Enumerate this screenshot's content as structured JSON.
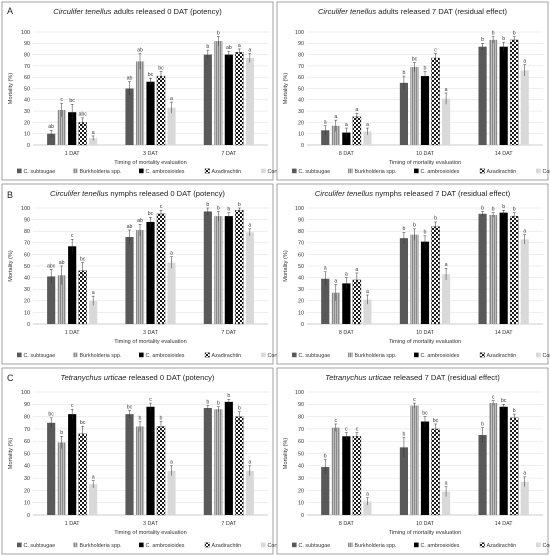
{
  "colors": {
    "C. subtsugae": "#595959",
    "Burkholderia spp.": "#a6a6a6",
    "C. ambrosioides": "#000000",
    "Azadirachtin": "#checker",
    "Control": "#d9d9d9"
  },
  "series_names": [
    "C. subtsugae",
    "Burkholderia spp.",
    "C. ambrosioides",
    "Azadirachtin",
    "Control"
  ],
  "xlabel": "Timing of mortality evaluation",
  "ylabel": "Mortality (%)",
  "panel_letters": [
    "A",
    "B",
    "C"
  ],
  "chart_data": [
    {
      "type": "bar",
      "title_italic": "Circulifer tenellus",
      "title_rest": " adults released 0 DAT (potency)",
      "categories": [
        "1 DAT",
        "3 DAT",
        "7 DAT"
      ],
      "ylim": [
        0,
        100
      ],
      "yticks": [
        0,
        10,
        20,
        30,
        40,
        50,
        60,
        70,
        80,
        90,
        100
      ],
      "series": [
        {
          "name": "C. subtsugae",
          "values": [
            10,
            50,
            80
          ],
          "errors": [
            3,
            6,
            4
          ],
          "letters": [
            "ab",
            "ab",
            "b"
          ]
        },
        {
          "name": "Burkholderia spp.",
          "values": [
            31,
            74,
            92
          ],
          "errors": [
            6,
            7,
            4
          ],
          "letters": [
            "c",
            "ab",
            "b"
          ]
        },
        {
          "name": "C. ambrosioides",
          "values": [
            29,
            56,
            80
          ],
          "errors": [
            7,
            3,
            3
          ],
          "letters": [
            "bc",
            "bc",
            "ab"
          ]
        },
        {
          "name": "Azadirachtin",
          "values": [
            20,
            61,
            82
          ],
          "errors": [
            4,
            4,
            3
          ],
          "letters": [
            "abc",
            "bc",
            "a"
          ]
        },
        {
          "name": "Control",
          "values": [
            6,
            33,
            77
          ],
          "errors": [
            2,
            5,
            4
          ],
          "letters": [
            "a",
            "a",
            "a"
          ]
        }
      ]
    },
    {
      "type": "bar",
      "title_italic": "Circulifer tenellus",
      "title_rest": " adults released 7 DAT (residual effect)",
      "categories": [
        "8 DAT",
        "10 DAT",
        "14 DAT"
      ],
      "ylim": [
        0,
        100
      ],
      "yticks": [
        0,
        10,
        20,
        30,
        40,
        50,
        60,
        70,
        80,
        90,
        100
      ],
      "series": [
        {
          "name": "C. subtsugae",
          "values": [
            13,
            55,
            87
          ],
          "errors": [
            4,
            6,
            3
          ],
          "letters": [
            "a",
            "b",
            "b"
          ]
        },
        {
          "name": "Burkholderia spp.",
          "values": [
            17,
            69,
            93
          ],
          "errors": [
            5,
            4,
            3
          ],
          "letters": [
            "a",
            "bc",
            "b"
          ]
        },
        {
          "name": "C. ambrosioides",
          "values": [
            11,
            61,
            87
          ],
          "errors": [
            4,
            4,
            4
          ],
          "letters": [
            "a",
            "b",
            "b"
          ]
        },
        {
          "name": "Azadirachtin",
          "values": [
            25,
            77,
            93
          ],
          "errors": [
            3,
            4,
            3
          ],
          "letters": [
            "a",
            "c",
            "b"
          ]
        },
        {
          "name": "Control",
          "values": [
            12,
            41,
            66
          ],
          "errors": [
            3,
            5,
            5
          ],
          "letters": [
            "a",
            "a",
            "a"
          ]
        }
      ]
    },
    {
      "type": "bar",
      "title_italic": "Circulifer tenellus",
      "title_rest": " nymphs released 0 DAT (potency)",
      "categories": [
        "1 DAT",
        "3 DAT",
        "7 DAT"
      ],
      "ylim": [
        0,
        100
      ],
      "yticks": [
        0,
        10,
        20,
        30,
        40,
        50,
        60,
        70,
        80,
        90,
        100
      ],
      "series": [
        {
          "name": "C. subtsugae",
          "values": [
            41,
            75,
            97
          ],
          "errors": [
            6,
            6,
            3
          ],
          "letters": [
            "abc",
            "ab",
            "b"
          ]
        },
        {
          "name": "Burkholderia spp.",
          "values": [
            42,
            81,
            93
          ],
          "errors": [
            8,
            5,
            4
          ],
          "letters": [
            "ab",
            "ab",
            "b"
          ]
        },
        {
          "name": "C. ambrosioides",
          "values": [
            67,
            88,
            93
          ],
          "errors": [
            6,
            4,
            3
          ],
          "letters": [
            "c",
            "bc",
            "b"
          ]
        },
        {
          "name": "Azadirachtin",
          "values": [
            46,
            95,
            98
          ],
          "errors": [
            7,
            3,
            2
          ],
          "letters": [
            "bc",
            "c",
            "b"
          ]
        },
        {
          "name": "Control",
          "values": [
            20,
            53,
            79
          ],
          "errors": [
            4,
            5,
            3
          ],
          "letters": [
            "a",
            "a",
            "a"
          ]
        }
      ]
    },
    {
      "type": "bar",
      "title_italic": "Circulifer tenellus",
      "title_rest": " nymphs released 7 DAT (residual effect)",
      "categories": [
        "8 DAT",
        "10 DAT",
        "14 DAT"
      ],
      "ylim": [
        0,
        100
      ],
      "yticks": [
        0,
        10,
        20,
        30,
        40,
        50,
        60,
        70,
        80,
        90,
        100
      ],
      "series": [
        {
          "name": "C. subtsugae",
          "values": [
            39,
            74,
            95
          ],
          "errors": [
            6,
            5,
            2
          ],
          "letters": [
            "a",
            "b",
            "b"
          ]
        },
        {
          "name": "Burkholderia spp.",
          "values": [
            27,
            77,
            94
          ],
          "errors": [
            7,
            5,
            2
          ],
          "letters": [
            "a",
            "b",
            "b"
          ]
        },
        {
          "name": "C. ambrosioides",
          "values": [
            35,
            71,
            96
          ],
          "errors": [
            5,
            5,
            2
          ],
          "letters": [
            "a",
            "b",
            "b"
          ]
        },
        {
          "name": "Azadirachtin",
          "values": [
            38,
            84,
            93
          ],
          "errors": [
            6,
            4,
            3
          ],
          "letters": [
            "a",
            "b",
            "b"
          ]
        },
        {
          "name": "Control",
          "values": [
            21,
            43,
            73
          ],
          "errors": [
            4,
            5,
            4
          ],
          "letters": [
            "a",
            "a",
            "a"
          ]
        }
      ]
    },
    {
      "type": "bar",
      "title_italic": "Tetranychus urticae",
      "title_rest": " released 0 DAT (potency)",
      "categories": [
        "1 DAT",
        "3 DAT",
        "7 DAT"
      ],
      "ylim": [
        0,
        100
      ],
      "yticks": [
        0,
        10,
        20,
        30,
        40,
        50,
        60,
        70,
        80,
        90,
        100
      ],
      "series": [
        {
          "name": "C. subtsugae",
          "values": [
            75,
            82,
            87
          ],
          "errors": [
            4,
            3,
            2
          ],
          "letters": [
            "bc",
            "bc",
            "b"
          ]
        },
        {
          "name": "Burkholderia spp.",
          "values": [
            59,
            72,
            86
          ],
          "errors": [
            5,
            4,
            2
          ],
          "letters": [
            "b",
            "b",
            "b"
          ]
        },
        {
          "name": "C. ambrosioides",
          "values": [
            82,
            88,
            92
          ],
          "errors": [
            4,
            3,
            2
          ],
          "letters": [
            "c",
            "c",
            "b"
          ]
        },
        {
          "name": "Azadirachtin",
          "values": [
            66,
            72,
            80
          ],
          "errors": [
            6,
            4,
            4
          ],
          "letters": [
            "bc",
            "b",
            "b"
          ]
        },
        {
          "name": "Control",
          "values": [
            25,
            36,
            36
          ],
          "errors": [
            3,
            4,
            4
          ],
          "letters": [
            "a",
            "a",
            "a"
          ]
        }
      ]
    },
    {
      "type": "bar",
      "title_italic": "Tetranychus urticae",
      "title_rest": " released 7 DAT (residual effect)",
      "categories": [
        "8 DAT",
        "10 DAT",
        "14 DAT"
      ],
      "ylim": [
        0,
        100
      ],
      "yticks": [
        0,
        10,
        20,
        30,
        40,
        50,
        60,
        70,
        80,
        90,
        100
      ],
      "series": [
        {
          "name": "C. subtsugae",
          "values": [
            39,
            55,
            65
          ],
          "errors": [
            6,
            8,
            6
          ],
          "letters": [
            "b",
            "b",
            "b"
          ]
        },
        {
          "name": "Burkholderia spp.",
          "values": [
            71,
            89,
            91
          ],
          "errors": [
            3,
            2,
            2
          ],
          "letters": [
            "c",
            "c",
            "c"
          ]
        },
        {
          "name": "C. ambrosioides",
          "values": [
            64,
            76,
            88
          ],
          "errors": [
            3,
            4,
            2
          ],
          "letters": [
            "c",
            "bc",
            "bc"
          ]
        },
        {
          "name": "Azadirachtin",
          "values": [
            64,
            70,
            79
          ],
          "errors": [
            3,
            4,
            3
          ],
          "letters": [
            "c",
            "bc",
            "b"
          ]
        },
        {
          "name": "Control",
          "values": [
            11,
            19,
            27
          ],
          "errors": [
            3,
            4,
            4
          ],
          "letters": [
            "a",
            "a",
            "a"
          ]
        }
      ]
    }
  ]
}
